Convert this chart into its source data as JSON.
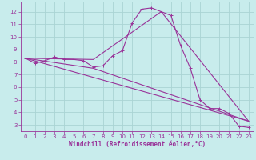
{
  "xlabel": "Windchill (Refroidissement éolien,°C)",
  "ylabel": "",
  "background_color": "#c8ecec",
  "grid_color": "#aad4d4",
  "line_color": "#993399",
  "xlim": [
    -0.5,
    23.5
  ],
  "ylim": [
    2.5,
    12.8
  ],
  "yticks": [
    3,
    4,
    5,
    6,
    7,
    8,
    9,
    10,
    11,
    12
  ],
  "xticks": [
    0,
    1,
    2,
    3,
    4,
    5,
    6,
    7,
    8,
    9,
    10,
    11,
    12,
    13,
    14,
    15,
    16,
    17,
    18,
    19,
    20,
    21,
    22,
    23
  ],
  "series1_x": [
    0,
    1,
    2,
    3,
    4,
    5,
    6,
    7,
    8,
    9,
    10,
    11,
    12,
    13,
    14,
    15,
    16,
    17,
    18,
    19,
    20,
    21,
    22,
    23
  ],
  "series1_y": [
    8.3,
    7.9,
    8.1,
    8.4,
    8.2,
    8.2,
    8.1,
    7.6,
    7.7,
    8.5,
    8.9,
    11.1,
    12.2,
    12.3,
    12.0,
    11.7,
    9.3,
    7.5,
    5.0,
    4.3,
    4.3,
    3.9,
    2.9,
    2.8
  ],
  "series2_x": [
    0,
    23
  ],
  "series2_y": [
    8.3,
    3.3
  ],
  "series3_x": [
    0,
    7,
    23
  ],
  "series3_y": [
    8.3,
    7.5,
    3.3
  ],
  "series4_x": [
    0,
    7,
    14,
    23
  ],
  "series4_y": [
    8.3,
    8.2,
    12.0,
    3.3
  ],
  "tick_fontsize": 5.0,
  "xlabel_fontsize": 5.5
}
